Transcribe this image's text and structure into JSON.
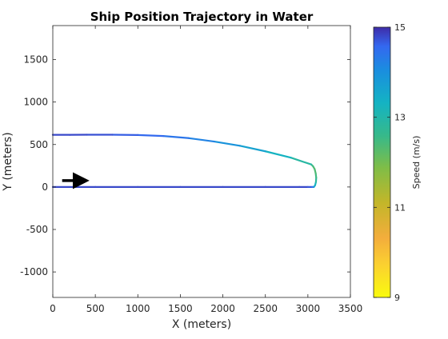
{
  "chart_data": {
    "type": "line",
    "title": "Ship Position Trajectory in Water",
    "xlabel": "X (meters)",
    "ylabel": "Y (meters)",
    "xlim": [
      0,
      3500
    ],
    "ylim": [
      -1300,
      1900
    ],
    "xticks": [
      0,
      500,
      1000,
      1500,
      2000,
      2500,
      3000,
      3500
    ],
    "yticks": [
      -1000,
      -500,
      0,
      500,
      1000,
      1500
    ],
    "grid": false,
    "colorbar": {
      "label": "Speed  (m/s)",
      "range": [
        9,
        15
      ],
      "ticks": [
        9,
        11,
        13,
        15
      ],
      "colormap": "parula"
    },
    "series": [
      {
        "x": [
          0,
          500,
          1000,
          1500,
          2000,
          2500,
          2900,
          3000,
          3050,
          3070
        ],
        "y": [
          0,
          0,
          0,
          0,
          0,
          0,
          0,
          0,
          0,
          0
        ],
        "speed": [
          14.8,
          14.8,
          14.8,
          14.8,
          14.8,
          14.8,
          14.8,
          14.8,
          14.6,
          14.3
        ]
      },
      {
        "x": [
          3070,
          3085,
          3095,
          3098,
          3092,
          3080,
          3060,
          3040
        ],
        "y": [
          0,
          20,
          60,
          110,
          160,
          210,
          245,
          265
        ],
        "speed": [
          14.0,
          13.5,
          13.0,
          12.6,
          12.4,
          12.3,
          12.4,
          12.6
        ]
      },
      {
        "x": [
          3040,
          2800,
          2500,
          2200,
          1900,
          1600,
          1300,
          1000,
          700,
          400,
          200,
          0
        ],
        "y": [
          265,
          345,
          420,
          485,
          535,
          575,
          600,
          612,
          615,
          615,
          614,
          614
        ],
        "speed": [
          12.7,
          13.1,
          13.5,
          13.8,
          14.1,
          14.3,
          14.5,
          14.6,
          14.7,
          14.8,
          14.8,
          14.8
        ]
      }
    ],
    "annotations": [
      {
        "type": "arrow",
        "x": [
          110,
          370
        ],
        "y": [
          75,
          75
        ],
        "color": "#000000"
      }
    ]
  }
}
